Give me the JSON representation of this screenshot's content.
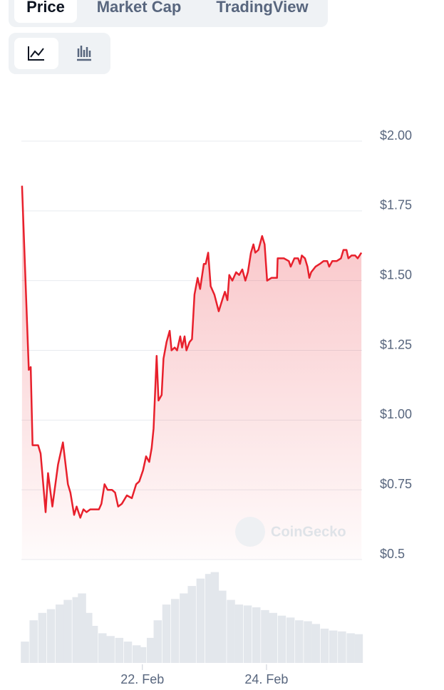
{
  "tabs": [
    "Price",
    "Market Cap",
    "TradingView"
  ],
  "watermark": "CoinGecko",
  "chart_data": {
    "type": "line",
    "color": "#e8202c",
    "x": [
      20.06,
      20.17,
      20.2,
      20.23,
      20.32,
      20.36,
      20.44,
      20.48,
      20.55,
      20.64,
      20.72,
      20.8,
      20.84,
      20.9,
      20.94,
      21.0,
      21.05,
      21.1,
      21.16,
      21.23,
      21.3,
      21.34,
      21.39,
      21.44,
      21.51,
      21.56,
      21.61,
      21.67,
      21.75,
      21.83,
      21.9,
      21.95,
      22.01,
      22.06,
      22.11,
      22.15,
      22.18,
      22.23,
      22.26,
      22.31,
      22.34,
      22.39,
      22.44,
      22.47,
      22.52,
      22.56,
      22.61,
      22.64,
      22.68,
      22.71,
      22.76,
      22.8,
      22.84,
      22.89,
      22.93,
      22.99,
      23.02,
      23.06,
      23.1,
      23.16,
      23.23,
      23.3,
      23.33,
      23.37,
      23.4,
      23.45,
      23.51,
      23.56,
      23.61,
      23.66,
      23.7,
      23.75,
      23.79,
      23.82,
      23.87,
      23.93,
      23.97,
      24.01,
      24.08,
      24.17,
      24.18,
      24.28,
      24.36,
      24.39,
      24.45,
      24.51,
      24.54,
      24.57,
      24.62,
      24.66,
      24.69,
      24.72,
      24.79,
      24.86,
      24.92,
      24.98,
      25.01,
      25.06,
      25.13,
      25.2,
      25.24,
      25.29,
      25.32,
      25.37,
      25.43,
      25.47,
      25.53
    ],
    "values": [
      1.84,
      1.18,
      1.19,
      0.91,
      0.91,
      0.88,
      0.67,
      0.81,
      0.69,
      0.84,
      0.92,
      0.77,
      0.74,
      0.66,
      0.69,
      0.65,
      0.68,
      0.67,
      0.68,
      0.68,
      0.68,
      0.7,
      0.77,
      0.75,
      0.75,
      0.74,
      0.69,
      0.7,
      0.73,
      0.72,
      0.77,
      0.78,
      0.82,
      0.87,
      0.85,
      0.9,
      0.97,
      1.23,
      1.07,
      1.09,
      1.22,
      1.28,
      1.32,
      1.25,
      1.26,
      1.25,
      1.3,
      1.26,
      1.3,
      1.25,
      1.28,
      1.29,
      1.45,
      1.51,
      1.47,
      1.56,
      1.56,
      1.6,
      1.48,
      1.45,
      1.39,
      1.44,
      1.46,
      1.43,
      1.52,
      1.5,
      1.53,
      1.52,
      1.54,
      1.5,
      1.53,
      1.6,
      1.63,
      1.6,
      1.61,
      1.66,
      1.63,
      1.5,
      1.51,
      1.51,
      1.58,
      1.58,
      1.57,
      1.55,
      1.58,
      1.58,
      1.56,
      1.59,
      1.58,
      1.55,
      1.51,
      1.53,
      1.55,
      1.56,
      1.57,
      1.57,
      1.55,
      1.57,
      1.57,
      1.58,
      1.61,
      1.61,
      1.58,
      1.59,
      1.59,
      1.58,
      1.6
    ],
    "xlim": [
      20.05,
      25.54
    ],
    "xticks": [
      {
        "value": 22,
        "label": "22. Feb"
      },
      {
        "value": 24,
        "label": "24. Feb"
      }
    ],
    "ylim": [
      0.5,
      2.0
    ],
    "yticks": [
      {
        "value": 0.5,
        "label": "$0.5"
      },
      {
        "value": 0.75,
        "label": "$0.75"
      },
      {
        "value": 1.0,
        "label": "$1.00"
      },
      {
        "value": 1.25,
        "label": "$1.25"
      },
      {
        "value": 1.5,
        "label": "$1.50"
      },
      {
        "value": 1.75,
        "label": "$1.75"
      },
      {
        "value": 2.0,
        "label": "$2.00"
      }
    ],
    "grid": true,
    "volume": {
      "color": "#e3e7ec",
      "ylim": [
        0,
        100
      ],
      "x": [
        20.11,
        20.25,
        20.39,
        20.53,
        20.67,
        20.8,
        20.94,
        21.03,
        21.13,
        21.22,
        21.36,
        21.49,
        21.63,
        21.77,
        21.91,
        22.0,
        22.14,
        22.25,
        22.39,
        22.53,
        22.67,
        22.8,
        22.94,
        23.08,
        23.17,
        23.29,
        23.43,
        23.56,
        23.7,
        23.84,
        23.98,
        24.11,
        24.25,
        24.39,
        24.53,
        24.67,
        24.8,
        24.94,
        25.08,
        25.22,
        25.36,
        25.49
      ],
      "values": [
        23,
        46,
        54,
        58,
        63,
        68,
        71,
        75,
        54,
        40,
        32,
        29,
        27,
        23,
        19,
        17,
        27,
        46,
        63,
        69,
        75,
        83,
        91,
        96,
        98,
        78,
        68,
        63,
        62,
        60,
        57,
        54,
        51,
        49,
        46,
        45,
        42,
        37,
        35,
        34,
        32,
        31
      ]
    }
  }
}
